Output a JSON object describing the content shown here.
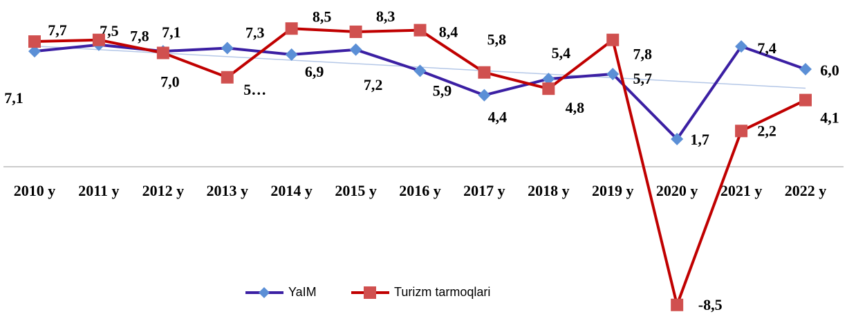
{
  "chart_data": {
    "type": "line",
    "categories": [
      "2010 y",
      "2011 y",
      "2012 y",
      "2013 y",
      "2014 y",
      "2015 y",
      "2016 y",
      "2017 y",
      "2018 y",
      "2019 y",
      "2020 y",
      "2021 y",
      "2022 y"
    ],
    "series": [
      {
        "name": "YaIM",
        "color": "#3b1fa3",
        "marker_color": "#5b8fd6",
        "marker": "diamond",
        "values": [
          7.1,
          7.5,
          7.1,
          7.3,
          6.9,
          7.2,
          5.9,
          4.4,
          5.4,
          5.7,
          1.7,
          7.4,
          6.0
        ],
        "value_labels": [
          "7,1",
          "7,5",
          "7,1",
          "7,3",
          "6,9",
          "7,2",
          "5,9",
          "4,4",
          "5,4",
          "5,7",
          "1,7",
          "7,4",
          "6,0"
        ]
      },
      {
        "name": "Turizm tarmoqlari",
        "color": "#c00000",
        "marker_color": "#d0504f",
        "marker": "square",
        "values": [
          7.7,
          7.8,
          7.0,
          5.5,
          8.5,
          8.3,
          8.4,
          5.8,
          4.8,
          7.8,
          -8.5,
          2.2,
          4.1
        ],
        "value_labels": [
          "7,7",
          "7,8",
          "7,0",
          "5…",
          "8,5",
          "8,3",
          "8,4",
          "5,8",
          "4,8",
          "7,8",
          "-8,5",
          "2,2",
          "4,1"
        ]
      }
    ],
    "ylim": [
      -9,
      10
    ],
    "trendline": true,
    "legend": "bottom"
  }
}
